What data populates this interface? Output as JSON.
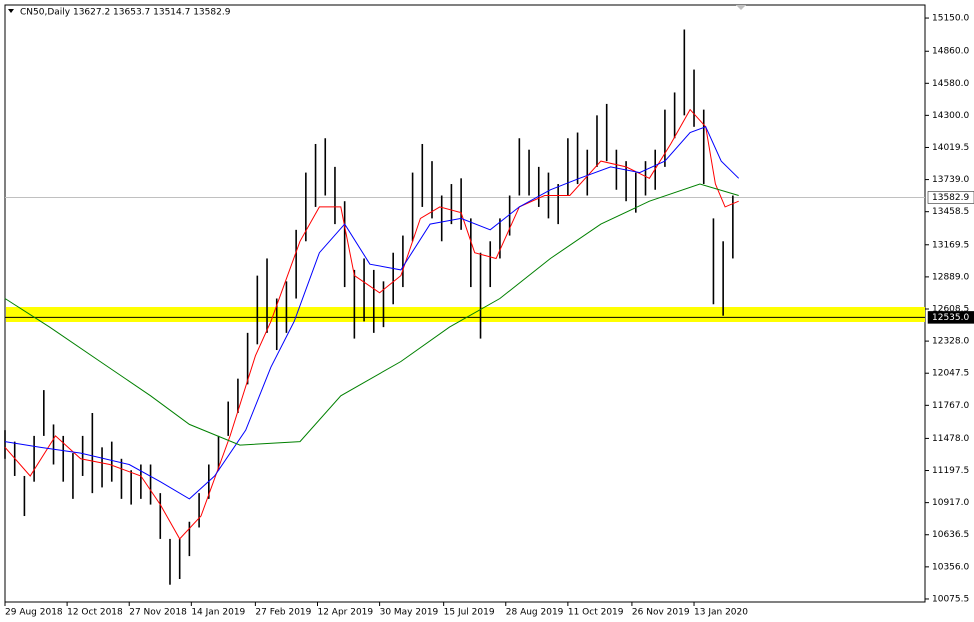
{
  "chart_data": {
    "type": "ohlc",
    "title": "CN50,Daily  13627.2 13653.7 13514.7 13582.9",
    "xlim": [
      0,
      474
    ],
    "ylim": [
      10049,
      15264
    ],
    "xticks": [
      {
        "value": 0,
        "label": "29 Aug 2018"
      },
      {
        "value": 32,
        "label": "12 Oct 2018"
      },
      {
        "value": 64,
        "label": "27 Nov 2018"
      },
      {
        "value": 96,
        "label": "14 Jan 2019"
      },
      {
        "value": 129,
        "label": "27 Feb 2019"
      },
      {
        "value": 161,
        "label": "12 Apr 2019"
      },
      {
        "value": 193,
        "label": "30 May 2019"
      },
      {
        "value": 226,
        "label": "15 Jul 2019"
      },
      {
        "value": 258,
        "label": "28 Aug 2019"
      },
      {
        "value": 290,
        "label": "11 Oct 2019"
      },
      {
        "value": 323,
        "label": "26 Nov 2019"
      },
      {
        "value": 355,
        "label": "13 Jan 2020"
      }
    ],
    "yticks": [
      {
        "value": 15150,
        "label": "15150.0"
      },
      {
        "value": 14860,
        "label": "14860.0"
      },
      {
        "value": 14580,
        "label": "14580.0"
      },
      {
        "value": 14300,
        "label": "14300.0"
      },
      14019.5,
      {
        "value": 13739,
        "label": "13739.0"
      },
      13458.5,
      13169.5,
      {
        "value": 12889,
        "label": "12889.0"
      },
      12608.5,
      {
        "value": 12328,
        "label": "12328.0"
      },
      12047.5,
      {
        "value": 11767,
        "label": "11767.0"
      },
      {
        "value": 11478,
        "label": "11478.0"
      },
      11197.5,
      {
        "value": 10917,
        "label": "10917.0"
      },
      10636.5,
      {
        "value": 10356,
        "label": "10356.0"
      },
      10075.5
    ],
    "bar_color": "#000000",
    "bars": {
      "x": [
        0,
        5,
        10,
        15,
        20,
        25,
        30,
        35,
        40,
        45,
        50,
        55,
        60,
        65,
        70,
        75,
        80,
        85,
        90,
        95,
        100,
        105,
        110,
        115,
        120,
        125,
        130,
        135,
        140,
        145,
        150,
        155,
        160,
        165,
        170,
        175,
        180,
        185,
        190,
        195,
        200,
        205,
        210,
        215,
        220,
        225,
        230,
        235,
        240,
        245,
        250,
        255,
        260,
        265,
        270,
        275,
        280,
        285,
        290,
        295,
        300,
        305,
        310,
        315,
        320,
        325,
        330,
        335,
        340,
        345,
        350,
        355,
        360,
        365,
        370,
        375
      ],
      "high": [
        11550,
        11450,
        11150,
        11500,
        11900,
        11600,
        11500,
        11350,
        11500,
        11700,
        11400,
        11450,
        11300,
        11200,
        11250,
        11250,
        11000,
        10600,
        10600,
        10750,
        11000,
        11250,
        11500,
        11800,
        12000,
        12400,
        12900,
        13050,
        12700,
        12850,
        13300,
        13800,
        14050,
        14100,
        13850,
        13550,
        12950,
        13050,
        12950,
        12850,
        13100,
        13250,
        13800,
        14050,
        13900,
        13600,
        13700,
        13750,
        13400,
        13100,
        13200,
        13400,
        13600,
        14100,
        14000,
        13850,
        13800,
        13700,
        14100,
        14150,
        14000,
        14300,
        14400,
        14000,
        13900,
        13800,
        13900,
        14000,
        14350,
        14500,
        15050,
        14700,
        14350,
        13400,
        13200,
        13600
      ],
      "low": [
        11300,
        11150,
        10800,
        11100,
        11500,
        11250,
        11100,
        10950,
        11150,
        11000,
        11050,
        11100,
        10950,
        10900,
        10950,
        10900,
        10600,
        10200,
        10250,
        10450,
        10700,
        10950,
        11200,
        11500,
        11700,
        11950,
        12300,
        12400,
        12250,
        12400,
        12700,
        13200,
        13500,
        13600,
        13350,
        12800,
        12350,
        12500,
        12400,
        12450,
        12650,
        12800,
        13200,
        13500,
        13400,
        13200,
        13350,
        13300,
        12800,
        12350,
        12800,
        13050,
        13250,
        13600,
        13600,
        13500,
        13400,
        13350,
        13600,
        13700,
        13600,
        13850,
        13900,
        13650,
        13550,
        13450,
        13600,
        13650,
        13850,
        14100,
        14300,
        14200,
        13700,
        12650,
        12550,
        13050
      ]
    },
    "series": [
      {
        "color": "#ff0000",
        "x": [
          0,
          13,
          26,
          39,
          54,
          70,
          80,
          90,
          101,
          116,
          129,
          137,
          152,
          162,
          173,
          180,
          193,
          204,
          214,
          224,
          235,
          242,
          253,
          265,
          278,
          291,
          307,
          320,
          332,
          343,
          353,
          361,
          366,
          371,
          378
        ],
        "values": [
          11400,
          11150,
          11500,
          11300,
          11250,
          11150,
          10900,
          10600,
          10800,
          11500,
          12200,
          12500,
          13200,
          13500,
          13500,
          12900,
          12750,
          12900,
          13400,
          13500,
          13450,
          13100,
          13050,
          13500,
          13600,
          13600,
          13900,
          13850,
          13750,
          14050,
          14350,
          14200,
          13700,
          13500,
          13550
        ]
      },
      {
        "color": "#0000ff",
        "x": [
          0,
          18,
          39,
          64,
          80,
          95,
          108,
          124,
          137,
          149,
          162,
          175,
          188,
          204,
          219,
          235,
          250,
          265,
          281,
          296,
          312,
          327,
          340,
          353,
          361,
          369,
          378
        ],
        "values": [
          11450,
          11400,
          11350,
          11250,
          11100,
          10950,
          11150,
          11550,
          12100,
          12500,
          13100,
          13350,
          13000,
          12950,
          13350,
          13400,
          13300,
          13500,
          13650,
          13750,
          13850,
          13800,
          13900,
          14150,
          14200,
          13900,
          13750
        ]
      },
      {
        "color": "#008000",
        "x": [
          0,
          23,
          49,
          75,
          95,
          121,
          152,
          173,
          204,
          229,
          255,
          281,
          307,
          332,
          358,
          378
        ],
        "values": [
          12700,
          12450,
          12150,
          11850,
          11600,
          11420,
          11450,
          11850,
          12150,
          12450,
          12700,
          13050,
          13350,
          13550,
          13700,
          13600
        ]
      }
    ],
    "zone": {
      "values": [
        12495,
        12626
      ],
      "color": "#ffff00"
    },
    "level": {
      "value": 12535,
      "label": "12535.0",
      "color": "#000000"
    },
    "price": {
      "value": 13582.9,
      "label": "13582.9",
      "color": "#c0c0c0"
    }
  }
}
